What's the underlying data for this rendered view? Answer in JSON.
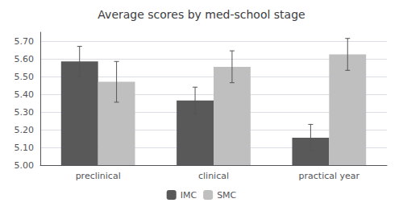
{
  "chart_data": {
    "type": "bar",
    "title": "Average scores by med-school stage",
    "categories": [
      "preclinical",
      "clinical",
      "practical year"
    ],
    "series": [
      {
        "name": "IMC",
        "color": "#595959",
        "values": [
          5.585,
          5.365,
          5.155
        ],
        "errors": [
          0.085,
          0.075,
          0.075
        ]
      },
      {
        "name": "SMC",
        "color": "#bfbfbf",
        "values": [
          5.47,
          5.555,
          5.625
        ],
        "errors": [
          0.115,
          0.09,
          0.09
        ]
      }
    ],
    "ylim": [
      5.0,
      5.75
    ],
    "yticks": [
      {
        "value": 5.0,
        "label": "5.00"
      },
      {
        "value": 5.1,
        "label": "5.10"
      },
      {
        "value": 5.2,
        "label": "5.20"
      },
      {
        "value": 5.3,
        "label": "5.30"
      },
      {
        "value": 5.4,
        "label": "5.40"
      },
      {
        "value": 5.5,
        "label": "5.50"
      },
      {
        "value": 5.6,
        "label": "5.60"
      },
      {
        "value": 5.7,
        "label": "5.70"
      }
    ],
    "grid": true,
    "legend": "bottom"
  }
}
